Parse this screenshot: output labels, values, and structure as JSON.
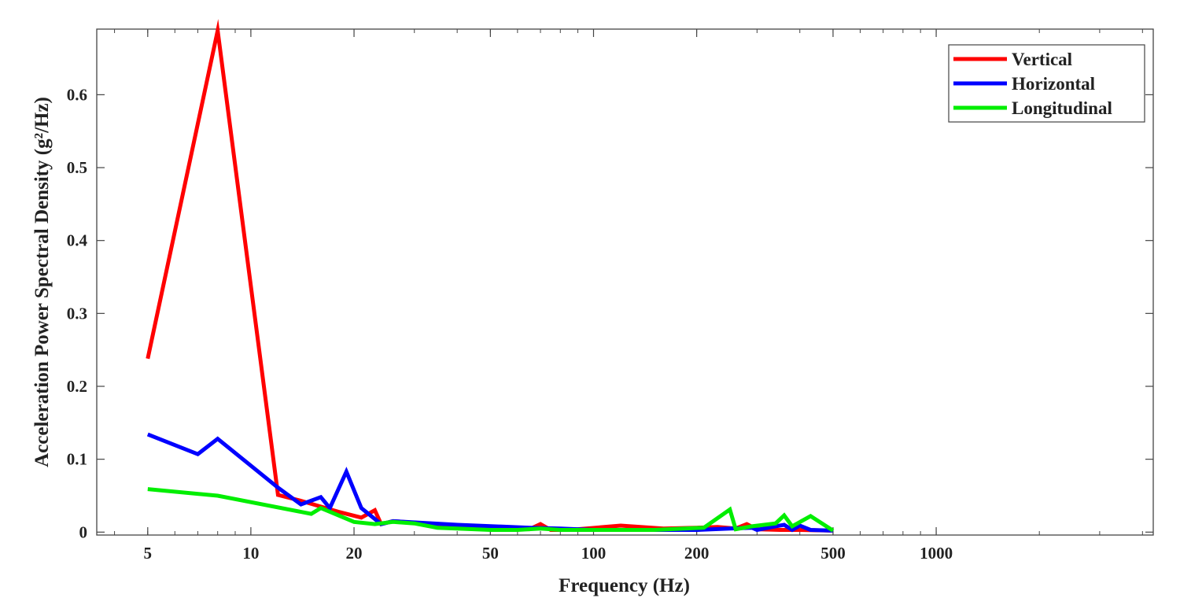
{
  "chart_data": {
    "type": "line",
    "title": "",
    "xlabel": "Frequency (Hz)",
    "ylabel": "Acceleration Power Spectral Density (g²/Hz)",
    "xscale": "log",
    "xlim": [
      3.55,
      4300
    ],
    "ylim": [
      -0.004,
      0.69
    ],
    "x_ticks": [
      5,
      10,
      20,
      50,
      100,
      200,
      500,
      1000
    ],
    "x_tick_labels": [
      "5",
      "10",
      "20",
      "50",
      "100",
      "200",
      "500",
      "1000"
    ],
    "y_ticks": [
      0,
      0.1,
      0.2,
      0.3,
      0.4,
      0.5,
      0.6
    ],
    "y_tick_labels": [
      "0",
      "0.1",
      "0.2",
      "0.3",
      "0.4",
      "0.5",
      "0.6"
    ],
    "grid": false,
    "legend": {
      "position": "top-right"
    },
    "series": [
      {
        "name": "Vertical",
        "color": "#ff0000",
        "points": [
          [
            5,
            0.238
          ],
          [
            8,
            0.688
          ],
          [
            12,
            0.051
          ],
          [
            14,
            0.043
          ],
          [
            16,
            0.035
          ],
          [
            18,
            0.028
          ],
          [
            21,
            0.02
          ],
          [
            23,
            0.03
          ],
          [
            24,
            0.011
          ],
          [
            26,
            0.015
          ],
          [
            30,
            0.013
          ],
          [
            40,
            0.008
          ],
          [
            50,
            0.005
          ],
          [
            65,
            0.004
          ],
          [
            70,
            0.011
          ],
          [
            75,
            0.003
          ],
          [
            80,
            0.003
          ],
          [
            90,
            0.004
          ],
          [
            120,
            0.009
          ],
          [
            160,
            0.005
          ],
          [
            200,
            0.006
          ],
          [
            230,
            0.007
          ],
          [
            260,
            0.005
          ],
          [
            280,
            0.011
          ],
          [
            300,
            0.004
          ],
          [
            350,
            0.003
          ],
          [
            380,
            0.003
          ],
          [
            400,
            0.003
          ],
          [
            500,
            0.002
          ]
        ]
      },
      {
        "name": "Horizontal",
        "color": "#0000ff",
        "points": [
          [
            5,
            0.134
          ],
          [
            7,
            0.107
          ],
          [
            8,
            0.128
          ],
          [
            12,
            0.061
          ],
          [
            14,
            0.038
          ],
          [
            16,
            0.048
          ],
          [
            17,
            0.033
          ],
          [
            19,
            0.083
          ],
          [
            21,
            0.033
          ],
          [
            24,
            0.011
          ],
          [
            26,
            0.015
          ],
          [
            40,
            0.01
          ],
          [
            65,
            0.006
          ],
          [
            80,
            0.005
          ],
          [
            100,
            0.003
          ],
          [
            130,
            0.003
          ],
          [
            200,
            0.003
          ],
          [
            250,
            0.005
          ],
          [
            290,
            0.006
          ],
          [
            300,
            0.003
          ],
          [
            340,
            0.008
          ],
          [
            360,
            0.01
          ],
          [
            380,
            0.003
          ],
          [
            400,
            0.009
          ],
          [
            430,
            0.003
          ],
          [
            500,
            0.002
          ]
        ]
      },
      {
        "name": "Longitudinal",
        "color": "#00ee00",
        "points": [
          [
            5,
            0.059
          ],
          [
            8,
            0.05
          ],
          [
            15,
            0.025
          ],
          [
            16,
            0.033
          ],
          [
            17,
            0.028
          ],
          [
            20,
            0.014
          ],
          [
            23,
            0.011
          ],
          [
            26,
            0.014
          ],
          [
            30,
            0.012
          ],
          [
            35,
            0.006
          ],
          [
            40,
            0.005
          ],
          [
            50,
            0.003
          ],
          [
            60,
            0.003
          ],
          [
            70,
            0.005
          ],
          [
            80,
            0.003
          ],
          [
            100,
            0.003
          ],
          [
            150,
            0.003
          ],
          [
            210,
            0.006
          ],
          [
            250,
            0.031
          ],
          [
            260,
            0.004
          ],
          [
            290,
            0.008
          ],
          [
            340,
            0.012
          ],
          [
            360,
            0.023
          ],
          [
            380,
            0.008
          ],
          [
            430,
            0.022
          ],
          [
            500,
            0.002
          ]
        ]
      }
    ]
  }
}
